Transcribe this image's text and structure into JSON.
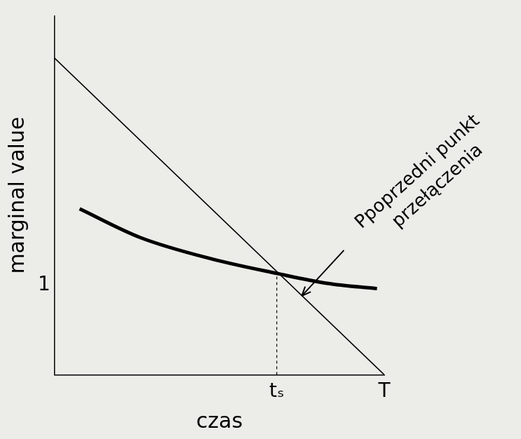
{
  "chart_data": {
    "type": "line",
    "x_label": "czas",
    "y_label": "marginal value",
    "xlim": [
      0,
      10
    ],
    "ylim": [
      0,
      4
    ],
    "xticks": [
      {
        "value": 6.74,
        "label": "tₛ"
      },
      {
        "value": 10,
        "label": "T"
      }
    ],
    "yticks": [
      1
    ],
    "grid": false,
    "series": [
      {
        "x": [
          0,
          10
        ],
        "values": [
          3.53,
          0
        ],
        "color": "#000000",
        "line_style": "solid"
      },
      {
        "x": [
          0.76,
          2.6,
          4.78,
          6.74,
          8.26,
          9.78
        ],
        "values": [
          1.85,
          1.53,
          1.29,
          1.13,
          1.02,
          0.96
        ],
        "color": "#000000",
        "line_style": "bold"
      },
      {
        "x": [
          6.74,
          6.74
        ],
        "values": [
          0,
          1.13
        ],
        "color": "#000000",
        "line_style": "dashed"
      }
    ],
    "annotations": [
      {
        "text": [
          "Ppoprzedni punkt",
          "przełączenia"
        ],
        "x": 7.5,
        "y": 0.88
      }
    ]
  }
}
